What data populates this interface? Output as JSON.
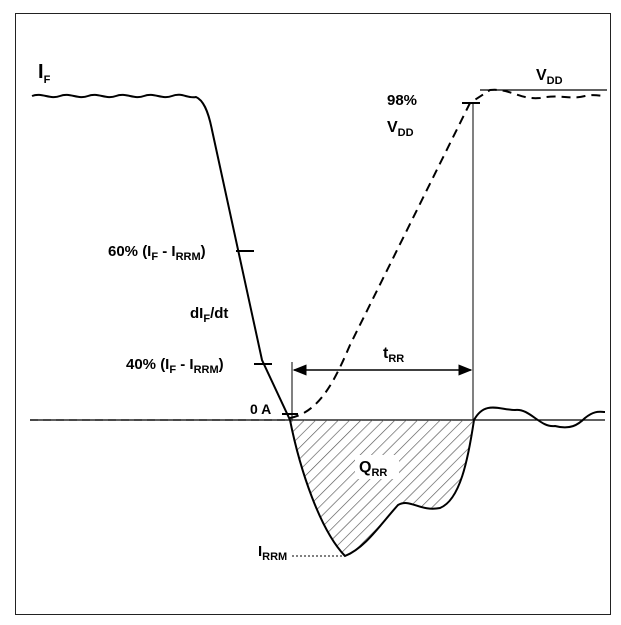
{
  "labels": {
    "if": {
      "main": "I",
      "sub": "F"
    },
    "vdd": {
      "main": "V",
      "sub": "DD"
    },
    "pct98_line1": "98%",
    "pct98_line2": {
      "main": "V",
      "sub": "DD"
    },
    "pct60": {
      "a": "60% (I",
      "s1": "F",
      "b": " - I",
      "s2": "RRM",
      "c": ")"
    },
    "didt": {
      "a": "dI",
      "s": "F",
      "b": "/dt"
    },
    "pct40": {
      "a": "40% (I",
      "s1": "F",
      "b": " - I",
      "s2": "RRM",
      "c": ")"
    },
    "zero_a": "0 A",
    "trr": {
      "main": "t",
      "sub": "RR"
    },
    "qrr": {
      "main": "Q",
      "sub": "RR"
    },
    "irrm": {
      "main": "I",
      "sub": "RRM"
    }
  },
  "colors": {
    "stroke": "#000000",
    "hatch": "#555555",
    "background": "#ffffff"
  }
}
